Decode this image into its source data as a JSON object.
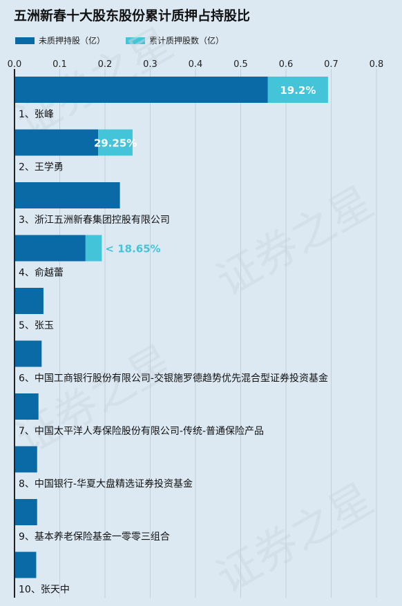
{
  "chart_data": {
    "type": "bar",
    "orientation": "horizontal",
    "stacked": true,
    "title": "五洲新春十大股东股份累计质押占持股比",
    "xlim": [
      0,
      0.8
    ],
    "x_ticks": [
      "0.0",
      "0.1",
      "0.2",
      "0.3",
      "0.4",
      "0.5",
      "0.6",
      "0.7",
      "0.8"
    ],
    "grid": true,
    "legend_position": "top-left",
    "watermark": "证券之星",
    "categories": [
      "1、张峰",
      "2、王学勇",
      "3、浙江五洲新春集团控股有限公司",
      "4、俞越蕾",
      "5、张玉",
      "6、中国工商银行股份有限公司-交银施罗德趋势优先混合型证券投资基金",
      "7、中国太平洋人寿保险股份有限公司-传统-普通保险产品",
      "8、中国银行-华夏大盘精选证券投资基金",
      "9、基本养老保险基金一零零三组合",
      "10、张天中"
    ],
    "series": [
      {
        "name": "未质押持股（亿）",
        "color": "#0a6aa6",
        "values": [
          0.56,
          0.185,
          0.233,
          0.157,
          0.064,
          0.06,
          0.053,
          0.05,
          0.05,
          0.048
        ]
      },
      {
        "name": "累计质押股数（亿）",
        "color": "#44c4d8",
        "values": [
          0.133,
          0.076,
          0,
          0.036,
          0,
          0,
          0,
          0,
          0,
          0
        ]
      }
    ],
    "data_labels": [
      {
        "row": 0,
        "text": "19.2%"
      },
      {
        "row": 1,
        "text": "29.25%"
      },
      {
        "row": 3,
        "text": "< 18.65%"
      }
    ]
  }
}
